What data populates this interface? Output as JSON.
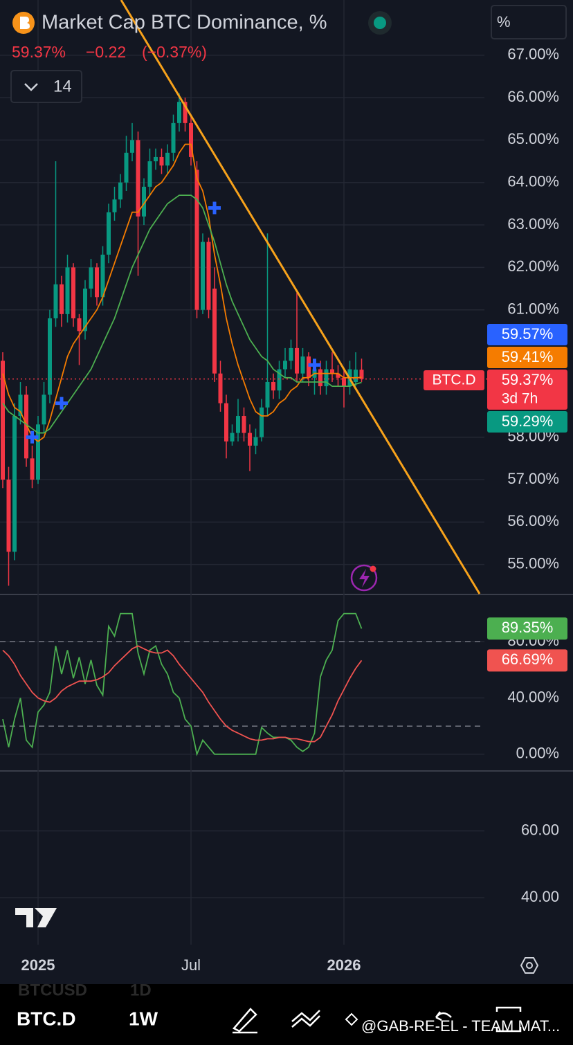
{
  "header": {
    "unit_button": "%",
    "value": "59.37%",
    "change": "−0.22",
    "change_pct": "(−0.37%)",
    "interval": "14"
  },
  "toolbar": {
    "ghost_symbol": "BTCUSD",
    "ghost_interval": "1D",
    "symbol": "BTC.D",
    "interval": "1W",
    "watermark": "@GAB-RE-EL - TEAM MAT..."
  },
  "chart_data": [
    {
      "type": "candlestick",
      "title": "Market Cap BTC Dominance, %",
      "categories": [
        null,
        null,
        null,
        null,
        null,
        null,
        "2025",
        null,
        null,
        null,
        null,
        null,
        null,
        null,
        null,
        null,
        null,
        null,
        null,
        null,
        null,
        null,
        null,
        null,
        null,
        null,
        null,
        null,
        null,
        null,
        null,
        null,
        "Jul",
        null,
        null,
        null,
        null,
        null,
        null,
        null,
        null,
        null,
        null,
        null,
        null,
        null,
        null,
        null,
        null,
        null,
        null,
        null,
        null,
        null,
        null,
        null,
        null,
        null,
        "2026",
        null,
        null,
        null
      ],
      "open": [
        59.8,
        57.0,
        55.3,
        58.5,
        59.0,
        57.5,
        57.0,
        58.3,
        59.0,
        60.8,
        61.6,
        60.9,
        62.0,
        60.8,
        60.5,
        61.5,
        62.0,
        61.3,
        62.3,
        63.3,
        63.6,
        64.0,
        64.7,
        65.0,
        63.2,
        63.9,
        64.5,
        64.6,
        64.4,
        64.7,
        65.4,
        65.9,
        65.4,
        64.3,
        61.0,
        62.6,
        61.5,
        59.5,
        58.8,
        57.9,
        58.1,
        58.5,
        58.1,
        57.8,
        58.0,
        58.7,
        59.3,
        59.1,
        59.6,
        59.8,
        60.1,
        59.5,
        59.9,
        59.4,
        59.6,
        59.2,
        59.6,
        59.5,
        59.4,
        59.2,
        59.3,
        59.59
      ],
      "high": [
        60.0,
        57.3,
        58.8,
        59.3,
        59.2,
        57.8,
        58.5,
        59.3,
        61.0,
        64.5,
        61.8,
        62.3,
        62.1,
        60.9,
        61.7,
        62.2,
        62.1,
        62.5,
        63.5,
        63.9,
        64.2,
        65.1,
        65.4,
        65.2,
        64.1,
        64.8,
        64.8,
        64.8,
        64.9,
        65.6,
        66.1,
        66.0,
        65.6,
        64.5,
        62.8,
        62.7,
        62.0,
        59.8,
        59.0,
        58.3,
        58.9,
        58.7,
        58.3,
        58.2,
        58.9,
        62.8,
        59.5,
        59.8,
        60.1,
        60.3,
        61.4,
        60.1,
        60.0,
        59.8,
        59.8,
        59.8,
        60.0,
        59.7,
        59.6,
        59.8,
        60.0,
        59.85
      ],
      "low": [
        56.8,
        54.5,
        55.1,
        58.3,
        57.3,
        56.8,
        56.9,
        58.1,
        58.8,
        60.6,
        60.6,
        60.7,
        60.6,
        59.7,
        60.3,
        61.3,
        61.1,
        61.1,
        62.1,
        63.1,
        63.4,
        63.8,
        64.5,
        61.8,
        63.0,
        63.7,
        64.3,
        64.2,
        64.2,
        64.5,
        65.2,
        65.2,
        64.4,
        60.8,
        60.9,
        60.8,
        59.3,
        58.6,
        57.5,
        57.8,
        57.9,
        57.9,
        57.2,
        57.6,
        57.9,
        58.5,
        58.9,
        58.9,
        59.4,
        59.6,
        59.3,
        59.3,
        59.2,
        59.0,
        59.0,
        59.0,
        59.3,
        59.2,
        58.7,
        59.0,
        59.2,
        59.3
      ],
      "close": [
        57.0,
        55.3,
        58.5,
        59.0,
        57.5,
        57.0,
        58.3,
        59.0,
        60.8,
        61.6,
        60.9,
        62.0,
        60.8,
        60.5,
        61.5,
        62.0,
        61.3,
        62.3,
        63.3,
        63.6,
        64.0,
        64.7,
        65.0,
        63.2,
        63.9,
        64.5,
        64.6,
        64.4,
        64.7,
        65.4,
        65.9,
        65.4,
        64.6,
        61.0,
        62.6,
        61.0,
        59.5,
        58.8,
        57.9,
        58.1,
        58.5,
        58.1,
        57.8,
        58.0,
        58.7,
        59.3,
        59.1,
        59.6,
        59.8,
        60.1,
        59.5,
        59.9,
        59.4,
        59.6,
        59.2,
        59.6,
        59.5,
        59.4,
        59.2,
        59.6,
        59.59,
        59.37
      ],
      "up_color": "#089981",
      "down_color": "#f23645",
      "lines": [
        {
          "color": "#f57c00",
          "values": [
            59.5,
            59.0,
            58.7,
            58.6,
            58.3,
            58.0,
            57.9,
            58.0,
            58.4,
            58.9,
            59.4,
            59.9,
            60.2,
            60.4,
            60.6,
            60.8,
            61.0,
            61.3,
            61.7,
            62.1,
            62.5,
            62.9,
            63.3,
            63.3,
            63.5,
            63.7,
            63.9,
            64.0,
            64.2,
            64.4,
            64.7,
            64.9,
            64.9,
            64.1,
            63.8,
            63.2,
            62.3,
            61.6,
            60.8,
            60.2,
            59.7,
            59.3,
            58.9,
            58.6,
            58.5,
            58.5,
            58.6,
            58.8,
            58.9,
            59.1,
            59.2,
            59.4,
            59.4,
            59.5,
            59.5,
            59.5,
            59.5,
            59.5,
            59.4,
            59.4,
            59.4,
            59.41
          ]
        },
        {
          "color": "#4caf50",
          "values": [
            58.8,
            58.6,
            58.5,
            58.4,
            58.3,
            58.2,
            58.1,
            58.1,
            58.2,
            58.4,
            58.6,
            58.8,
            59.0,
            59.2,
            59.4,
            59.6,
            59.9,
            60.2,
            60.5,
            60.8,
            61.2,
            61.6,
            62.0,
            62.3,
            62.6,
            62.9,
            63.1,
            63.3,
            63.5,
            63.6,
            63.7,
            63.7,
            63.7,
            63.6,
            63.4,
            63.0,
            62.6,
            62.1,
            61.6,
            61.2,
            60.9,
            60.6,
            60.3,
            60.1,
            59.9,
            59.8,
            59.6,
            59.5,
            59.4,
            59.4,
            59.3,
            59.3,
            59.3,
            59.3,
            59.3,
            59.3,
            59.2,
            59.2,
            59.2,
            59.2,
            59.25,
            59.29
          ]
        }
      ],
      "markers": {
        "color": "#2962ff",
        "values": [
          null,
          null,
          null,
          null,
          null,
          58.0,
          null,
          null,
          null,
          null,
          58.8,
          null,
          null,
          null,
          null,
          null,
          null,
          null,
          null,
          null,
          null,
          null,
          null,
          null,
          null,
          null,
          null,
          null,
          null,
          null,
          null,
          null,
          null,
          null,
          null,
          null,
          63.4,
          null,
          null,
          null,
          null,
          null,
          null,
          null,
          null,
          null,
          null,
          null,
          null,
          null,
          null,
          null,
          null,
          59.7,
          null,
          null,
          null,
          null,
          null,
          null,
          null,
          null
        ]
      },
      "ylim": [
        54.31,
        68.3
      ],
      "yticks": [
        {
          "value": 67,
          "label": "67.00%"
        },
        {
          "value": 66,
          "label": "66.00%"
        },
        {
          "value": 65,
          "label": "65.00%"
        },
        {
          "value": 64,
          "label": "64.00%"
        },
        {
          "value": 63,
          "label": "63.00%"
        },
        {
          "value": 62,
          "label": "62.00%"
        },
        {
          "value": 61,
          "label": "61.00%"
        },
        {
          "value": 58,
          "label": "58.00%"
        },
        {
          "value": 57,
          "label": "57.00%"
        },
        {
          "value": 56,
          "label": "56.00%"
        },
        {
          "value": 55,
          "label": "55.00%"
        }
      ],
      "grid": true,
      "symbol_tag": "BTC.D",
      "countdown": "3d 7h",
      "price_labels": [
        {
          "value": 59.57,
          "label": "59.57%",
          "color": "#2962ff"
        },
        {
          "value": 59.41,
          "label": "59.41%",
          "color": "#f57c00"
        },
        {
          "value": 59.37,
          "label": "59.37%",
          "color": "#f23645"
        },
        {
          "value": 59.29,
          "label": "59.29%",
          "color": "#089981"
        }
      ]
    },
    {
      "type": "line",
      "series": [
        {
          "color": "#4caf50",
          "values": [
            25,
            5,
            25,
            40,
            10,
            5,
            30,
            35,
            44,
            77,
            57,
            74,
            54,
            69,
            50,
            67,
            49,
            42,
            91,
            84,
            100,
            100,
            100,
            72,
            57,
            74,
            77,
            64,
            57,
            44,
            40,
            25,
            20,
            0,
            10,
            5,
            0,
            0,
            0,
            0,
            0,
            0,
            0,
            0,
            19,
            15,
            12,
            12,
            12,
            10,
            5,
            2,
            5,
            15,
            55,
            67,
            74,
            95,
            100,
            100,
            100,
            89.35
          ],
          "value_label": {
            "value": 89.35,
            "label": "89.35%"
          }
        },
        {
          "color": "#f05350",
          "values": [
            74,
            70,
            64,
            56,
            50,
            44,
            40,
            38,
            37,
            40,
            45,
            48,
            50,
            52,
            52,
            52,
            53,
            55,
            58,
            63,
            67,
            71,
            75,
            77,
            75,
            73,
            72,
            72,
            74,
            70,
            64,
            59,
            54,
            49,
            44,
            37,
            31,
            25,
            20,
            17,
            15,
            13,
            11,
            10,
            10,
            11,
            11,
            12,
            12,
            11,
            11,
            10,
            9,
            9,
            12,
            20,
            28,
            38,
            46,
            54,
            61,
            66.69
          ],
          "value_label": {
            "value": 66.69,
            "label": "66.69%"
          }
        }
      ],
      "ylim": [
        -11.4,
        113.6
      ],
      "yticks": [
        {
          "value": 80,
          "label": "80.00%"
        },
        {
          "value": 40,
          "label": "40.00%"
        },
        {
          "value": 0,
          "label": "0.00%"
        }
      ],
      "bands": [
        80,
        20
      ]
    },
    {
      "type": "empty",
      "ylim": [
        26.0,
        77.9
      ],
      "yticks": [
        {
          "value": 60,
          "label": "60.00"
        },
        {
          "value": 40,
          "label": "40.00"
        }
      ]
    }
  ]
}
